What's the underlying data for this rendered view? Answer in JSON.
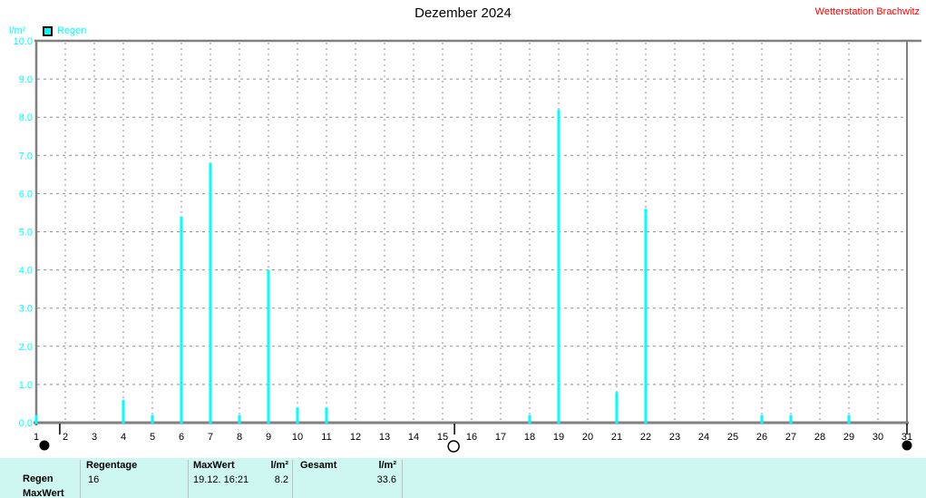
{
  "header": {
    "title": "Dezember 2024",
    "station": "Wetterstation Brachwitz"
  },
  "chart": {
    "unit_label": "l/m²",
    "legend": [
      {
        "label": "Regen",
        "color": "#00ffff"
      }
    ]
  },
  "colors": {
    "bar": "#00ffff",
    "axis_text_y": "#00ffff",
    "axis_text_x": "#000000",
    "border": "#808080",
    "grid": "#8f8f8f",
    "station_text": "#ff0000",
    "table_background": "#cff7f1",
    "table_divider": "#c0c0c0"
  },
  "chart_data": {
    "type": "bar",
    "title": "Dezember 2024",
    "ylabel": "l/m²",
    "ylim": [
      0,
      10
    ],
    "yticks": [
      0,
      1,
      2,
      3,
      4,
      5,
      6,
      7,
      8,
      9,
      10
    ],
    "grid": "dashed",
    "legend_position": "top-left",
    "x": [
      1,
      2,
      3,
      4,
      5,
      6,
      7,
      8,
      9,
      10,
      11,
      12,
      13,
      14,
      15,
      16,
      17,
      18,
      19,
      20,
      21,
      22,
      23,
      24,
      25,
      26,
      27,
      28,
      29,
      30,
      31
    ],
    "series": [
      {
        "name": "Regen",
        "color": "#00ffff",
        "values": [
          0.2,
          0,
          0,
          0.6,
          0.2,
          5.4,
          6.8,
          0.2,
          4.0,
          0.4,
          0.4,
          0,
          0,
          0,
          0,
          0,
          0,
          0.2,
          8.2,
          0,
          0.8,
          5.6,
          0,
          0,
          0,
          0.2,
          0.2,
          0,
          0.2,
          0,
          0
        ]
      }
    ],
    "moon_phases": [
      {
        "phase": "new",
        "symbol_day": 1.28,
        "tick_day": 1.81
      },
      {
        "phase": "full",
        "symbol_day": 15.38,
        "tick_day": 15.41
      },
      {
        "phase": "new",
        "symbol_day": 31.0,
        "tick_day": 31.0
      }
    ]
  },
  "table": {
    "row_labels": {
      "rain": "Regen",
      "max": "MaxWert"
    },
    "regentage": {
      "header": "Regentage",
      "value": "16"
    },
    "maxwert": {
      "header": "MaxWert",
      "unit": "l/m²",
      "datetime": "19.12. 16:21",
      "value": "8.2"
    },
    "gesamt": {
      "header": "Gesamt",
      "unit": "l/m²",
      "value": "33.6"
    }
  }
}
